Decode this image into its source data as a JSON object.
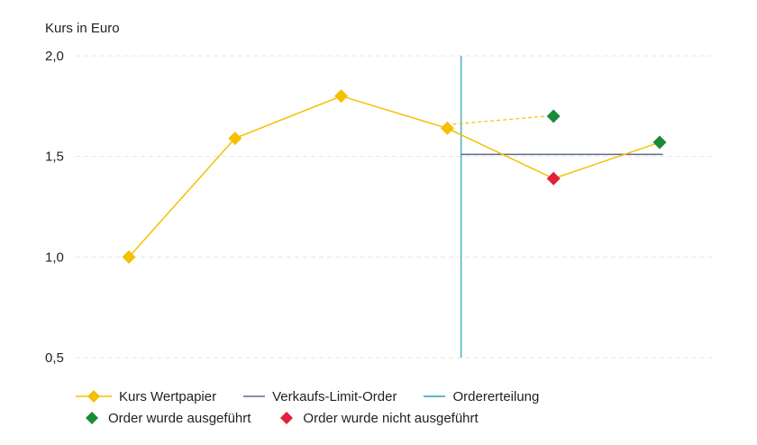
{
  "chart_data": {
    "type": "line",
    "ylabel": "Kurs in Euro",
    "ylim": [
      0.5,
      2.0
    ],
    "yticks": [
      2.0,
      1.5,
      1.0,
      0.5
    ],
    "ytick_labels": [
      "2,0",
      "1,5",
      "1,0",
      "0,5"
    ],
    "grid": "horizontal dashed",
    "legend_placement": "bottom",
    "colors": {
      "kurs": "#f5c000",
      "limit": "#5a6b8c",
      "order_time": "#2a9db5",
      "executed": "#1a8a3a",
      "not_executed": "#e0203f"
    },
    "x": [
      1,
      2,
      3,
      4,
      5,
      6
    ],
    "series": [
      {
        "name": "Kurs Wertpapier",
        "x": [
          1,
          2,
          3,
          4,
          5,
          6
        ],
        "values": [
          1.0,
          1.59,
          1.8,
          1.64,
          1.39,
          1.57
        ]
      },
      {
        "name": "Verkaufs-Limit-Order",
        "x": [
          4.13,
          6.03
        ],
        "values": [
          1.51,
          1.51
        ]
      }
    ],
    "projection": {
      "x": [
        4,
        5
      ],
      "values": [
        1.66,
        1.7
      ]
    },
    "order_time_x": 4.13,
    "executed_points": [
      {
        "x": 5,
        "y": 1.7
      },
      {
        "x": 6,
        "y": 1.57
      }
    ],
    "not_executed_points": [
      {
        "x": 5,
        "y": 1.39
      }
    ],
    "legend": [
      {
        "label": "Kurs Wertpapier",
        "symbol": "line-diamond"
      },
      {
        "label": "Verkaufs-Limit-Order",
        "symbol": "line"
      },
      {
        "label": "Ordererteilung",
        "symbol": "line"
      },
      {
        "label": "Order wurde ausgeführt",
        "symbol": "diamond"
      },
      {
        "label": "Order wurde nicht ausgeführt",
        "symbol": "diamond"
      }
    ]
  }
}
